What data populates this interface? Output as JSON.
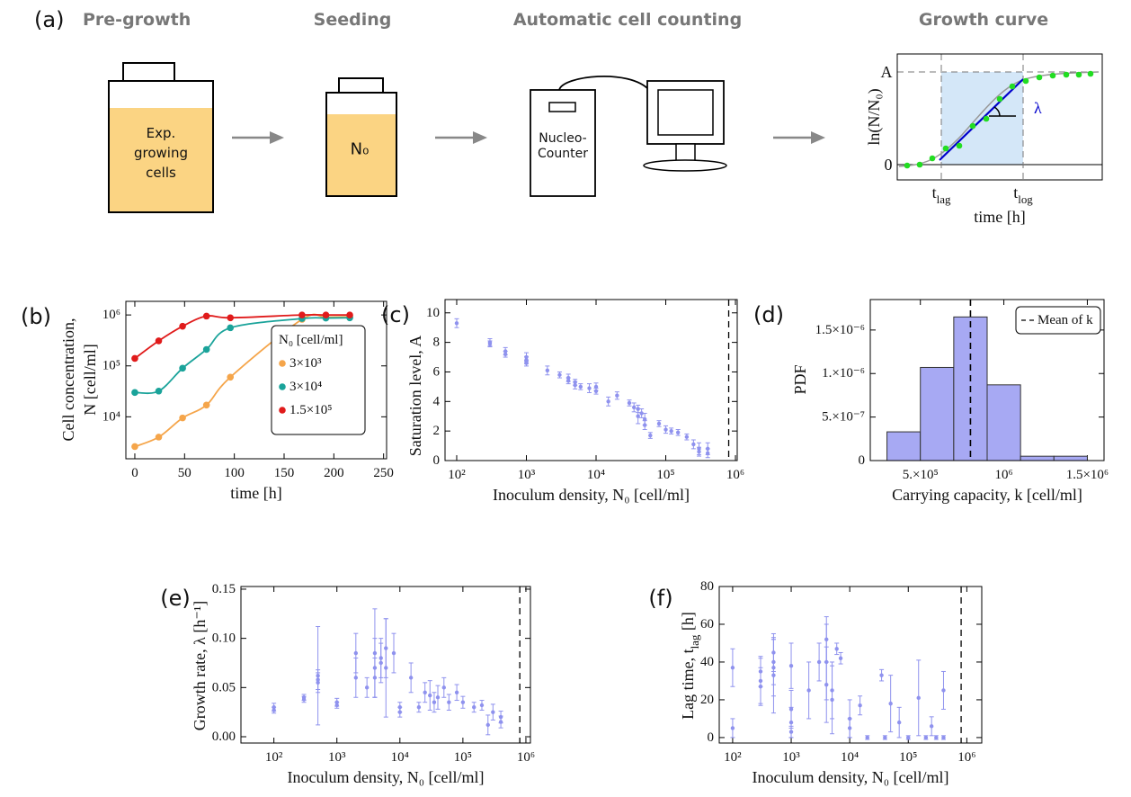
{
  "panel_a": {
    "label": "(a)",
    "steps": [
      "Pre-growth",
      "Seeding",
      "Automatic cell counting",
      "Growth curve"
    ],
    "pregrowth_text": [
      "Exp.",
      "growing",
      "cells"
    ],
    "seeding_text": "N₀",
    "counter_text": [
      "Nucleo-",
      "Counter"
    ],
    "inset": {
      "y_label": "ln(N/N₀)",
      "y_top": "A",
      "y_zero": "0",
      "t_lag": {
        "pre": "t",
        "sub": "lag"
      },
      "t_log": {
        "pre": "t",
        "sub": "log"
      },
      "x_label": "time [h]",
      "slope": "λ"
    }
  },
  "chart_data": [
    {
      "type": "line",
      "panel": "(b)",
      "x_label": "time [h]",
      "y_label": [
        "Cell concentration,",
        "N [cell/ml]"
      ],
      "x": [
        0,
        24,
        48,
        72,
        96,
        168,
        192,
        216
      ],
      "series": [
        {
          "name": "3×10³",
          "color": "#f5a54a",
          "values": [
            2600,
            4000,
            9500,
            17000,
            60000,
            820000,
            900000,
            920000
          ]
        },
        {
          "name": "3×10⁴",
          "color": "#1aa39a",
          "values": [
            30000,
            32000,
            90000,
            210000,
            560000,
            850000,
            870000,
            880000
          ]
        },
        {
          "name": "1.5×10⁵",
          "color": "#e01b1b",
          "values": [
            140000,
            310000,
            600000,
            950000,
            880000,
            1000000,
            1000000,
            1000000
          ]
        }
      ],
      "xlim": [
        -9,
        253
      ],
      "xticks": [
        0,
        50,
        100,
        150,
        200,
        250
      ],
      "ylim": [
        1500,
        1850000
      ],
      "y_log": true,
      "yticks": [
        {
          "value": 10000,
          "label": "10⁴"
        },
        {
          "value": 100000,
          "label": "10⁵"
        },
        {
          "value": 1000000,
          "label": "10⁶"
        }
      ],
      "legend": "lower right",
      "legend_title": "N₀ [cell/ml]"
    },
    {
      "type": "errorbar",
      "panel": "(c)",
      "x_label": "Inoculum density, N₀ [cell/ml]",
      "y_label": "Saturation level, A",
      "color": "#8f92ee",
      "x": [
        100,
        300,
        300,
        500,
        500,
        1000,
        1000,
        1000,
        2000,
        3000,
        4000,
        4000,
        5000,
        5000,
        6000,
        8000,
        10000,
        10000,
        15000,
        20000,
        30000,
        35000,
        40000,
        40000,
        45000,
        50000,
        50000,
        60000,
        80000,
        100000,
        120000,
        150000,
        200000,
        250000,
        300000,
        300000,
        400000,
        400000
      ],
      "y": [
        9.3,
        8.0,
        7.9,
        7.4,
        7.2,
        7.0,
        6.8,
        6.6,
        6.1,
        5.8,
        5.6,
        5.4,
        5.3,
        5.1,
        5.0,
        4.9,
        4.7,
        5.0,
        4.0,
        4.4,
        3.9,
        3.6,
        3.5,
        3.0,
        3.2,
        2.8,
        2.4,
        1.7,
        2.5,
        2.1,
        2.0,
        1.9,
        1.6,
        1.1,
        0.8,
        0.6,
        0.5,
        0.8
      ],
      "err": [
        0.3,
        0.25,
        0.2,
        0.25,
        0.2,
        0.3,
        0.25,
        0.2,
        0.3,
        0.2,
        0.25,
        0.2,
        0.2,
        0.25,
        0.2,
        0.3,
        0.2,
        0.25,
        0.3,
        0.25,
        0.2,
        0.3,
        0.25,
        0.5,
        0.3,
        0.4,
        0.3,
        0.2,
        0.2,
        0.25,
        0.2,
        0.2,
        0.2,
        0.3,
        0.4,
        0.3,
        0.3,
        0.4
      ],
      "x_log": true,
      "xlim": [
        68,
        1060000
      ],
      "xticks": [
        {
          "value": 100,
          "label": "10²"
        },
        {
          "value": 1000,
          "label": "10³"
        },
        {
          "value": 10000,
          "label": "10⁴"
        },
        {
          "value": 100000,
          "label": "10⁵"
        },
        {
          "value": 1000000,
          "label": "10⁶"
        }
      ],
      "ylim": [
        0,
        10.9
      ],
      "yticks": [
        0,
        2,
        4,
        6,
        8,
        10
      ],
      "reference_x": 800000
    },
    {
      "type": "histogram",
      "panel": "(d)",
      "x_label": "Carrying capacity, k [cell/ml]",
      "y_label": "PDF",
      "color": "#a7a9f3",
      "bins": [
        300000,
        500000,
        700000,
        900000,
        1100000,
        1300000,
        1500000
      ],
      "values": [
        3.3e-07,
        1.07e-06,
        1.65e-06,
        8.7e-07,
        5e-08,
        5e-08
      ],
      "xlim": [
        200000,
        1600000
      ],
      "xticks": [
        {
          "value": 500000,
          "label": "5.×10⁵"
        },
        {
          "value": 1000000,
          "label": "10⁶"
        },
        {
          "value": 1500000,
          "label": "1.5×10⁶"
        }
      ],
      "ylim": [
        0,
        1.85e-06
      ],
      "yticks": [
        0,
        {
          "value": 5e-07,
          "label": "5.×10⁻⁷"
        },
        {
          "value": 1e-06,
          "label": "1.×10⁻⁶"
        },
        {
          "value": 1.5e-06,
          "label": "1.5×10⁻⁶"
        }
      ],
      "reference": {
        "name": "Mean of k",
        "value": 800000
      },
      "legend": "upper right"
    },
    {
      "type": "errorbar",
      "panel": "(e)",
      "x_label": "Inoculum density, N₀ [cell/ml]",
      "y_label": "Growth rate, λ [h⁻¹]",
      "color": "#8f92ee",
      "x": [
        100,
        100,
        300,
        300,
        500,
        500,
        500,
        1000,
        1000,
        2000,
        2000,
        3000,
        4000,
        4000,
        4000,
        5000,
        5000,
        6000,
        6000,
        8000,
        10000,
        10000,
        15000,
        20000,
        25000,
        30000,
        35000,
        40000,
        50000,
        60000,
        80000,
        100000,
        150000,
        200000,
        250000,
        300000,
        400000,
        400000
      ],
      "y": [
        0.03,
        0.027,
        0.04,
        0.038,
        0.058,
        0.062,
        0.055,
        0.035,
        0.032,
        0.06,
        0.085,
        0.05,
        0.07,
        0.085,
        0.06,
        0.075,
        0.08,
        0.07,
        0.09,
        0.085,
        0.03,
        0.025,
        0.06,
        0.03,
        0.045,
        0.042,
        0.035,
        0.04,
        0.05,
        0.035,
        0.045,
        0.035,
        0.03,
        0.032,
        0.012,
        0.025,
        0.02,
        0.015
      ],
      "err": [
        0.004,
        0.003,
        0.003,
        0.003,
        0.01,
        0.05,
        0.01,
        0.004,
        0.003,
        0.02,
        0.02,
        0.01,
        0.03,
        0.045,
        0.02,
        0.02,
        0.02,
        0.05,
        0.03,
        0.02,
        0.005,
        0.005,
        0.015,
        0.005,
        0.01,
        0.015,
        0.01,
        0.012,
        0.01,
        0.008,
        0.008,
        0.006,
        0.005,
        0.005,
        0.01,
        0.008,
        0.006,
        0.006
      ],
      "x_log": true,
      "xlim": [
        30,
        1180000
      ],
      "xticks": [
        {
          "value": 100,
          "label": "10²"
        },
        {
          "value": 1000,
          "label": "10³"
        },
        {
          "value": 10000,
          "label": "10⁴"
        },
        {
          "value": 100000,
          "label": "10⁵"
        },
        {
          "value": 1000000,
          "label": "10⁶"
        }
      ],
      "ylim": [
        -0.0064,
        0.1527
      ],
      "yticks": [
        {
          "value": 0,
          "label": "0.00"
        },
        0.05,
        {
          "value": 0.1,
          "label": "0.10"
        },
        0.15
      ],
      "reference_x": 800000
    },
    {
      "type": "errorbar",
      "panel": "(f)",
      "x_label": "Inoculum density, N₀ [cell/ml]",
      "y_label": {
        "pre": "Lag time, t",
        "sub": "lag",
        "post": " [h]"
      },
      "color": "#8f92ee",
      "x": [
        100,
        100,
        300,
        300,
        300,
        500,
        500,
        500,
        500,
        1000,
        1000,
        1000,
        1000,
        2000,
        3000,
        4000,
        4000,
        4000,
        5000,
        5000,
        6000,
        7000,
        10000,
        10000,
        15000,
        20000,
        35000,
        40000,
        50000,
        70000,
        100000,
        150000,
        200000,
        250000,
        300000,
        400000,
        400000
      ],
      "y": [
        37,
        5,
        30,
        27,
        35,
        40,
        33,
        37,
        45,
        38,
        8,
        15,
        3,
        25,
        40,
        40,
        52,
        28,
        20,
        25,
        47,
        42,
        10,
        5,
        17,
        0,
        33,
        0,
        18,
        8,
        0,
        21,
        0,
        6,
        0,
        25,
        0
      ],
      "err": [
        10,
        5,
        12,
        10,
        8,
        12,
        20,
        15,
        10,
        12,
        8,
        10,
        3,
        15,
        10,
        20,
        12,
        20,
        18,
        15,
        3,
        3,
        10,
        5,
        5,
        1,
        3,
        1,
        15,
        8,
        1,
        20,
        1,
        5,
        1,
        10,
        1
      ],
      "x_log": true,
      "xlim": [
        59,
        1800000
      ],
      "xticks": [
        {
          "value": 100,
          "label": "10²"
        },
        {
          "value": 1000,
          "label": "10³"
        },
        {
          "value": 10000,
          "label": "10⁴"
        },
        {
          "value": 100000,
          "label": "10⁵"
        },
        {
          "value": 1000000,
          "label": "10⁶"
        }
      ],
      "ylim": [
        -2.9,
        80
      ],
      "yticks": [
        0,
        20,
        40,
        60,
        80
      ],
      "reference_x": 800000
    }
  ]
}
